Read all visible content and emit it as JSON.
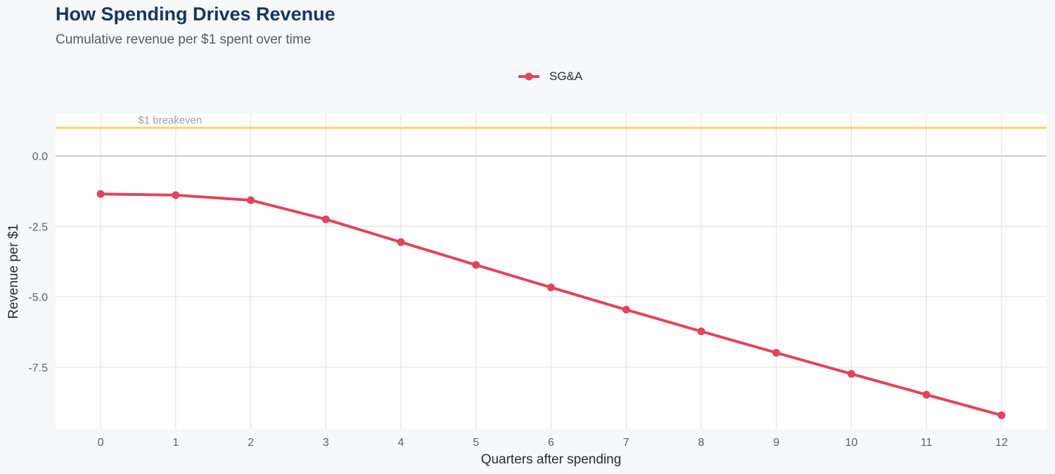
{
  "chart_data": {
    "type": "line",
    "title": "How Spending Drives Revenue",
    "subtitle": "Cumulative revenue per $1 spent over time",
    "xlabel": "Quarters after spending",
    "ylabel": "Revenue per $1",
    "x": [
      0,
      1,
      2,
      3,
      4,
      5,
      6,
      7,
      8,
      9,
      10,
      11,
      12
    ],
    "series": [
      {
        "name": "SG&A",
        "color": "#e2445c",
        "values": [
          -1.35,
          -1.39,
          -1.57,
          -2.25,
          -3.06,
          -3.87,
          -4.67,
          -5.46,
          -6.23,
          -6.99,
          -7.74,
          -8.48,
          -9.21
        ]
      }
    ],
    "xlim": [
      -0.6,
      12.6
    ],
    "ylim": [
      -9.7,
      1.5
    ],
    "xticks": [
      "0",
      "1",
      "2",
      "3",
      "4",
      "5",
      "6",
      "7",
      "8",
      "9",
      "10",
      "11",
      "12"
    ],
    "yticks": [
      {
        "value": 0,
        "label": "0.0"
      },
      {
        "value": -2.5,
        "label": "-2.5"
      },
      {
        "value": -5,
        "label": "-5.0"
      },
      {
        "value": -7.5,
        "label": "-7.5"
      }
    ],
    "reference_lines": [
      {
        "y": 1,
        "label": "$1 breakeven",
        "color": "#f7d36b"
      },
      {
        "y": 0,
        "label": "",
        "color": "#cccccc"
      }
    ],
    "grid": true,
    "legend_position": "top-center",
    "background": "#f7f8fa",
    "panel_background": "#ffffff",
    "title_color": "#16365c"
  }
}
